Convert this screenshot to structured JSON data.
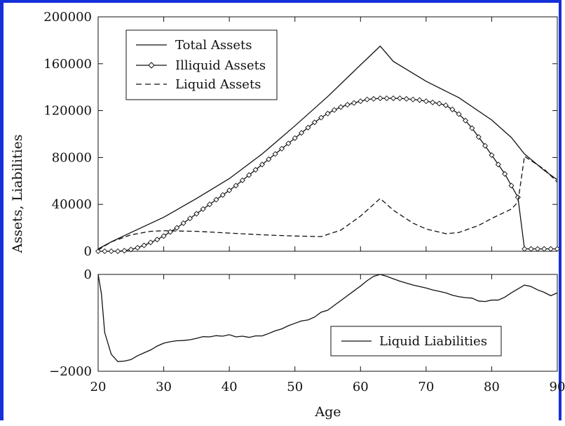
{
  "frame_color": "#1530d8",
  "chart_data": [
    {
      "type": "line",
      "ylabel": "Assets, Liabilities",
      "xlim": [
        20,
        90
      ],
      "ylim": [
        0,
        200000
      ],
      "y_ticks": [
        0,
        40000,
        80000,
        120000,
        160000,
        200000
      ],
      "y_tick_labels": [
        "0",
        "40000",
        "80000",
        "120000",
        "160000",
        "200000"
      ],
      "grid": false,
      "legend_position": "top-left",
      "series": [
        {
          "name": "Total Assets",
          "style": "solid",
          "x": [
            20,
            22,
            25,
            30,
            35,
            40,
            45,
            50,
            55,
            60,
            63,
            65,
            70,
            75,
            80,
            83,
            85,
            88,
            90
          ],
          "y": [
            2000,
            8000,
            16000,
            29000,
            45000,
            62000,
            83000,
            107000,
            132000,
            159000,
            175000,
            162000,
            145000,
            131000,
            112000,
            97000,
            83000,
            69000,
            61000
          ]
        },
        {
          "name": "Illiquid Assets",
          "style": "diamond",
          "x": [
            20,
            21,
            22,
            23,
            24,
            25,
            26,
            27,
            28,
            29,
            30,
            31,
            32,
            33,
            34,
            35,
            36,
            37,
            38,
            39,
            40,
            41,
            42,
            43,
            44,
            45,
            46,
            47,
            48,
            49,
            50,
            51,
            52,
            53,
            54,
            55,
            56,
            57,
            58,
            59,
            60,
            61,
            62,
            63,
            64,
            65,
            66,
            67,
            68,
            69,
            70,
            71,
            72,
            73,
            74,
            75,
            76,
            77,
            78,
            79,
            80,
            81,
            82,
            83,
            84,
            85,
            86,
            87,
            88,
            89,
            90
          ],
          "y": [
            0,
            0,
            0,
            0,
            500,
            1500,
            3000,
            5000,
            7500,
            10000,
            13000,
            16500,
            20000,
            24000,
            28000,
            32000,
            36000,
            40000,
            44000,
            48000,
            52000,
            56000,
            60500,
            65000,
            69500,
            74000,
            78500,
            83000,
            87500,
            92000,
            96500,
            101000,
            105500,
            110000,
            114000,
            117500,
            120500,
            123000,
            125000,
            126500,
            128000,
            129500,
            130000,
            130500,
            130500,
            130500,
            130500,
            130000,
            129500,
            129000,
            128000,
            127000,
            126000,
            124500,
            121000,
            117000,
            111500,
            105000,
            97500,
            90000,
            82000,
            74000,
            66000,
            56000,
            46000,
            2000,
            2000,
            2000,
            2000,
            2000,
            2000
          ]
        },
        {
          "name": "Liquid Assets",
          "style": "dashed",
          "x": [
            20,
            22,
            25,
            28,
            30,
            35,
            40,
            45,
            50,
            54,
            57,
            60,
            62,
            63,
            65,
            68,
            70,
            73,
            75,
            78,
            80,
            83,
            84,
            85,
            88,
            90
          ],
          "y": [
            1000,
            8000,
            14000,
            17000,
            17500,
            17000,
            15500,
            14000,
            13000,
            12500,
            18000,
            30000,
            40000,
            45000,
            35000,
            24000,
            19000,
            15000,
            16000,
            22000,
            28000,
            36000,
            42000,
            81000,
            70000,
            59000
          ]
        }
      ]
    },
    {
      "type": "line",
      "xlabel": "Age",
      "xlim": [
        20,
        90
      ],
      "ylim": [
        -2000,
        0
      ],
      "x_ticks": [
        20,
        30,
        40,
        50,
        60,
        70,
        80,
        90
      ],
      "x_tick_labels": [
        "20",
        "30",
        "40",
        "50",
        "60",
        "70",
        "80",
        "90"
      ],
      "y_ticks": [
        -2000,
        0
      ],
      "y_tick_labels": [
        "−2000",
        "0"
      ],
      "grid": false,
      "legend_position": "bottom-right",
      "series": [
        {
          "name": "Liquid Liabilities",
          "style": "solid",
          "x": [
            20,
            20.5,
            21,
            22,
            23,
            24,
            25,
            26,
            27,
            28,
            29,
            30,
            31,
            32,
            33,
            34,
            35,
            36,
            37,
            38,
            39,
            40,
            41,
            42,
            43,
            44,
            45,
            46,
            47,
            48,
            49,
            50,
            51,
            52,
            53,
            54,
            55,
            56,
            57,
            58,
            59,
            60,
            61,
            62,
            63,
            64,
            65,
            66,
            67,
            68,
            69,
            70,
            71,
            72,
            73,
            74,
            75,
            76,
            77,
            78,
            79,
            80,
            81,
            82,
            83,
            84,
            85,
            86,
            87,
            88,
            89,
            90
          ],
          "y": [
            0,
            -400,
            -1200,
            -1650,
            -1800,
            -1790,
            -1760,
            -1680,
            -1620,
            -1560,
            -1480,
            -1420,
            -1390,
            -1370,
            -1365,
            -1350,
            -1320,
            -1285,
            -1290,
            -1265,
            -1275,
            -1245,
            -1290,
            -1275,
            -1300,
            -1270,
            -1270,
            -1220,
            -1165,
            -1125,
            -1060,
            -1010,
            -960,
            -940,
            -880,
            -780,
            -740,
            -640,
            -540,
            -440,
            -340,
            -240,
            -130,
            -40,
            0,
            -40,
            -90,
            -140,
            -180,
            -220,
            -250,
            -280,
            -320,
            -350,
            -380,
            -430,
            -460,
            -480,
            -490,
            -550,
            -560,
            -530,
            -530,
            -470,
            -380,
            -300,
            -220,
            -250,
            -320,
            -370,
            -440,
            -380
          ]
        }
      ]
    }
  ]
}
